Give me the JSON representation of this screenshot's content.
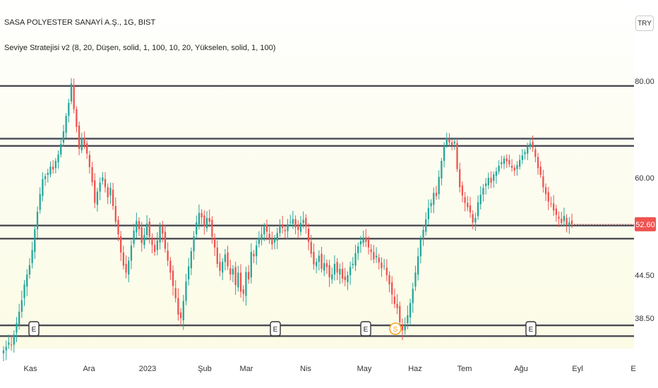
{
  "header": {
    "symbol_title": "SASA POLYESTER SANAYİ A.Ş., 1G, BIST",
    "indicator_title": "Seviye Stratejisi v2 (8, 20, Düşen, solid, 1, 100, 10, 20, Yükselen, solid, 1, 100)",
    "currency": "TRY"
  },
  "colors": {
    "up": "#26a69a",
    "down": "#ef5350",
    "level_line": "#4a4a52",
    "price_badge": "#ef5350",
    "split_marker": "#f5a623"
  },
  "chart_data": {
    "type": "candlestick",
    "title": "SASA POLYESTER SANAYİ A.Ş., 1G, BIST",
    "xlabel": "",
    "ylabel": "",
    "y_ticks": [
      "80.00",
      "60.00",
      "44.50",
      "38.50"
    ],
    "x_ticks": [
      "Kas",
      "Ara",
      "2023",
      "Şub",
      "Mar",
      "Nis",
      "May",
      "Haz",
      "Tem",
      "Ağu",
      "Eyl",
      "E"
    ],
    "last_price": "52.60",
    "levels": [
      79.0,
      68.1,
      66.6,
      52.4,
      50.3,
      37.5,
      36.0
    ],
    "events": [
      {
        "label": "E",
        "kind": "earnings",
        "x_index": 0
      },
      {
        "label": "E",
        "kind": "earnings",
        "x_index": 4
      },
      {
        "label": "E",
        "kind": "earnings",
        "x_index": 6
      },
      {
        "label": "S",
        "kind": "split",
        "x_index": 7
      },
      {
        "label": "E",
        "kind": "earnings",
        "x_index": 9
      }
    ],
    "close": [
      34.0,
      34.5,
      35.1,
      34.8,
      36.2,
      37.8,
      39.4,
      41.0,
      43.2,
      44.6,
      46.1,
      48.5,
      51.8,
      54.6,
      57.4,
      59.8,
      60.3,
      61.0,
      62.3,
      61.7,
      63.5,
      64.8,
      67.0,
      69.6,
      72.8,
      75.5,
      79.5,
      74.2,
      70.5,
      66.0,
      68.2,
      66.8,
      65.0,
      62.2,
      59.3,
      56.0,
      57.8,
      59.2,
      60.1,
      58.5,
      56.9,
      58.4,
      55.5,
      53.0,
      51.0,
      48.1,
      46.0,
      44.9,
      46.8,
      49.2,
      51.6,
      53.1,
      51.8,
      49.6,
      50.9,
      52.7,
      50.6,
      49.3,
      48.2,
      50.0,
      52.3,
      51.1,
      48.7,
      46.8,
      44.9,
      43.0,
      41.3,
      39.0,
      38.5,
      40.9,
      43.6,
      45.9,
      48.3,
      50.7,
      52.9,
      54.4,
      53.7,
      52.3,
      53.6,
      53.0,
      50.6,
      48.9,
      46.3,
      45.2,
      46.6,
      47.8,
      45.9,
      44.6,
      45.5,
      43.1,
      44.9,
      42.2,
      41.9,
      45.0,
      43.9,
      48.2,
      47.5,
      49.2,
      50.4,
      51.0,
      52.2,
      51.4,
      50.1,
      49.4,
      50.3,
      51.2,
      52.3,
      52.0,
      51.5,
      52.6,
      53.0,
      53.4,
      52.1,
      51.7,
      52.8,
      53.3,
      52.2,
      49.8,
      47.9,
      46.2,
      46.6,
      47.6,
      45.5,
      46.4,
      45.8,
      44.2,
      44.6,
      46.3,
      44.9,
      45.5,
      44.0,
      43.8,
      44.5,
      45.8,
      46.3,
      48.0,
      49.1,
      49.9,
      50.5,
      49.8,
      48.9,
      48.2,
      47.0,
      47.6,
      46.5,
      45.6,
      46.0,
      44.5,
      43.2,
      41.8,
      40.5,
      39.9,
      37.9,
      36.8,
      37.5,
      38.9,
      40.6,
      42.6,
      44.9,
      47.5,
      50.2,
      51.7,
      53.4,
      55.2,
      56.0,
      57.6,
      57.1,
      60.2,
      63.5,
      66.5,
      68.2,
      67.3,
      66.8,
      67.5,
      61.8,
      58.5,
      57.2,
      56.0,
      55.3,
      54.5,
      52.9,
      53.6,
      56.1,
      57.3,
      58.4,
      59.1,
      60.0,
      59.2,
      60.7,
      61.3,
      62.5,
      63.2,
      64.0,
      63.4,
      62.8,
      62.1,
      61.5,
      62.6,
      63.7,
      64.6,
      65.3,
      66.4,
      67.1,
      66.2,
      64.3,
      62.0,
      60.6,
      58.5,
      57.4,
      56.2,
      55.9,
      54.8,
      54.1,
      53.5,
      52.8,
      53.9,
      52.4,
      52.9,
      52.6
    ]
  }
}
